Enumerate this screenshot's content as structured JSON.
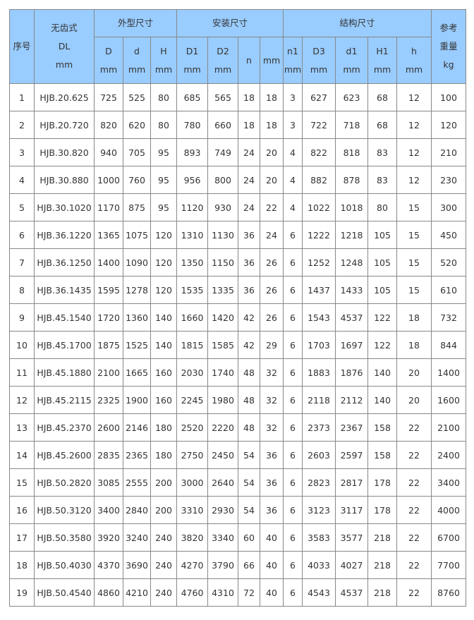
{
  "table": {
    "headers": {
      "index": "序号",
      "model": [
        "无齿式",
        "DL",
        "mm"
      ],
      "group_outer": "外型尺寸",
      "group_install": "安装尺寸",
      "group_struct": "结构尺寸",
      "weight": [
        "参考",
        "重量",
        "kg"
      ],
      "sub": [
        [
          "D",
          "mm"
        ],
        [
          "d",
          "mm"
        ],
        [
          "H",
          "mm"
        ],
        [
          "D1",
          "mm"
        ],
        [
          "D2",
          "mm"
        ],
        [
          "n",
          ""
        ],
        [
          "mm",
          ""
        ],
        [
          "n1",
          "mm"
        ],
        [
          "D3",
          "mm"
        ],
        [
          "d1",
          "mm"
        ],
        [
          "H1",
          "mm"
        ],
        [
          "h",
          "mm"
        ]
      ]
    },
    "rows": [
      [
        "1",
        "HJB.20.625",
        "725",
        "525",
        "80",
        "685",
        "565",
        "18",
        "18",
        "3",
        "627",
        "623",
        "68",
        "12",
        "100"
      ],
      [
        "2",
        "HJB.20.720",
        "820",
        "620",
        "80",
        "780",
        "660",
        "18",
        "18",
        "3",
        "722",
        "718",
        "68",
        "12",
        "120"
      ],
      [
        "3",
        "HJB.30.820",
        "940",
        "705",
        "95",
        "893",
        "749",
        "24",
        "20",
        "4",
        "822",
        "818",
        "83",
        "12",
        "210"
      ],
      [
        "4",
        "HJB.30.880",
        "1000",
        "760",
        "95",
        "956",
        "800",
        "24",
        "20",
        "4",
        "882",
        "878",
        "83",
        "12",
        "230"
      ],
      [
        "5",
        "HJB.30.1020",
        "1170",
        "875",
        "95",
        "1120",
        "930",
        "24",
        "22",
        "4",
        "1022",
        "1018",
        "80",
        "15",
        "300"
      ],
      [
        "6",
        "HJB.36.1220",
        "1365",
        "1075",
        "120",
        "1310",
        "1130",
        "36",
        "24",
        "6",
        "1222",
        "1218",
        "105",
        "15",
        "450"
      ],
      [
        "7",
        "HJB.36.1250",
        "1400",
        "1090",
        "120",
        "1350",
        "1150",
        "36",
        "26",
        "6",
        "1252",
        "1248",
        "105",
        "15",
        "520"
      ],
      [
        "8",
        "HJB.36.1435",
        "1595",
        "1278",
        "120",
        "1535",
        "1335",
        "36",
        "26",
        "6",
        "1437",
        "1433",
        "105",
        "15",
        "610"
      ],
      [
        "9",
        "HJB.45.1540",
        "1720",
        "1360",
        "140",
        "1660",
        "1420",
        "42",
        "26",
        "6",
        "1543",
        "4537",
        "122",
        "18",
        "732"
      ],
      [
        "10",
        "HJB.45.1700",
        "1875",
        "1525",
        "140",
        "1815",
        "1585",
        "42",
        "29",
        "6",
        "1703",
        "1697",
        "122",
        "18",
        "844"
      ],
      [
        "11",
        "HJB.45.1880",
        "2100",
        "1665",
        "160",
        "2030",
        "1740",
        "48",
        "32",
        "6",
        "1883",
        "1876",
        "140",
        "20",
        "1400"
      ],
      [
        "12",
        "HJB.45.2115",
        "2325",
        "1900",
        "160",
        "2245",
        "1980",
        "48",
        "32",
        "6",
        "2118",
        "2112",
        "140",
        "20",
        "1600"
      ],
      [
        "13",
        "HJB.45.2370",
        "2600",
        "2146",
        "180",
        "2520",
        "2220",
        "48",
        "32",
        "6",
        "2373",
        "2367",
        "158",
        "22",
        "2100"
      ],
      [
        "14",
        "HJB.45.2600",
        "2835",
        "2365",
        "180",
        "2750",
        "2450",
        "54",
        "36",
        "6",
        "2603",
        "2597",
        "158",
        "22",
        "2400"
      ],
      [
        "15",
        "HJB.50.2820",
        "3085",
        "2555",
        "200",
        "3000",
        "2640",
        "54",
        "36",
        "6",
        "2823",
        "2817",
        "178",
        "22",
        "3400"
      ],
      [
        "16",
        "HJB.50.3120",
        "3400",
        "2840",
        "200",
        "3310",
        "2930",
        "54",
        "36",
        "6",
        "3123",
        "3117",
        "178",
        "22",
        "4000"
      ],
      [
        "17",
        "HJB.50.3580",
        "3920",
        "3240",
        "240",
        "3820",
        "3340",
        "60",
        "40",
        "6",
        "3583",
        "3577",
        "218",
        "22",
        "6700"
      ],
      [
        "18",
        "HJB.50.4030",
        "4370",
        "3690",
        "240",
        "4270",
        "3790",
        "66",
        "40",
        "6",
        "4033",
        "4027",
        "218",
        "22",
        "7700"
      ],
      [
        "19",
        "HJB.50.4540",
        "4860",
        "4210",
        "240",
        "4760",
        "4310",
        "72",
        "40",
        "6",
        "4543",
        "4537",
        "218",
        "22",
        "8760"
      ]
    ]
  },
  "colors": {
    "header_bg": "#99ccff",
    "border": "#888888"
  }
}
